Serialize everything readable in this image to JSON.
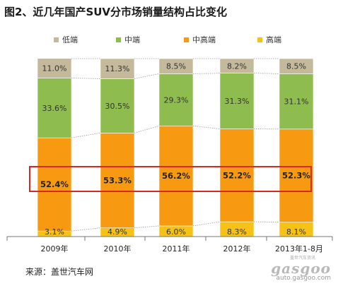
{
  "title": "图2、近几年国产SUV分市场销量结构占比变化",
  "source": "来源：盖世汽车网",
  "logo": {
    "brand": "gasgoo",
    "site": "auto.gasgoo.com",
    "tagline": "盖世汽车资讯"
  },
  "colors": {
    "低端": "#c4b99a",
    "中端": "#8fbc4e",
    "中高端": "#f79a12",
    "高端": "#f6c216",
    "highlight": "#d42a23"
  },
  "chart_data": {
    "type": "bar",
    "stacked": true,
    "percent": true,
    "categories": [
      "2009年",
      "2010年",
      "2011年",
      "2012年",
      "2013年1-8月"
    ],
    "series": [
      {
        "name": "高端",
        "values": [
          3.1,
          4.9,
          6.0,
          8.3,
          8.1
        ]
      },
      {
        "name": "中高端",
        "values": [
          52.4,
          53.3,
          56.2,
          52.2,
          52.3
        ]
      },
      {
        "name": "中端",
        "values": [
          33.6,
          30.5,
          29.3,
          31.3,
          31.1
        ]
      },
      {
        "name": "低端",
        "values": [
          11.0,
          11.3,
          8.5,
          8.2,
          8.5
        ]
      }
    ],
    "labels": {
      "高端": [
        "3.1%",
        "4.9%",
        "6.0%",
        "8.3%",
        "8.1%"
      ],
      "中高端": [
        "52.4%",
        "53.3%",
        "56.2%",
        "52.2%",
        "52.3%"
      ],
      "中端": [
        "33.6%",
        "30.5%",
        "29.3%",
        "31.3%",
        "31.1%"
      ],
      "低端": [
        "11.0%",
        "11.3%",
        "8.5%",
        "8.2%",
        "8.5%"
      ]
    },
    "legend_order": [
      "低端",
      "中端",
      "中高端",
      "高端"
    ],
    "legend_position": "top",
    "highlight_series": "中高端",
    "grid": false
  }
}
